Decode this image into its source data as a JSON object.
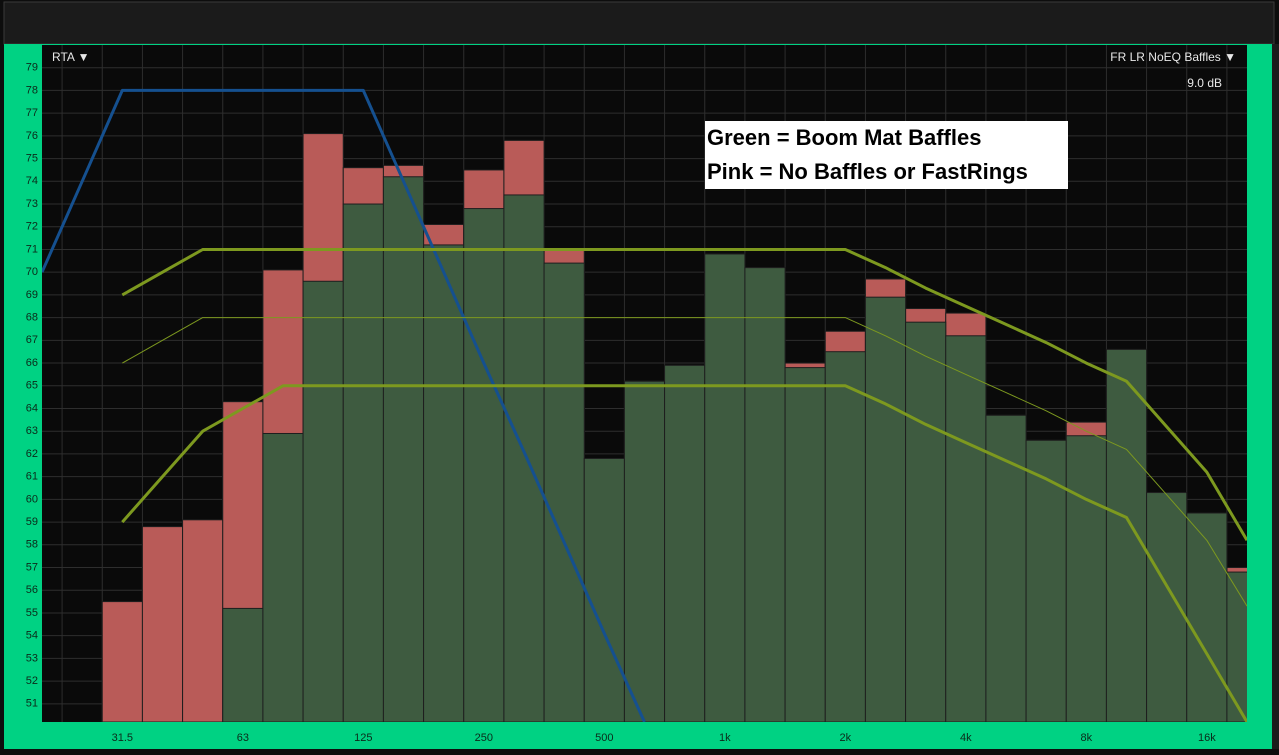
{
  "chart_data": {
    "type": "bar",
    "menu_left": "RTA ▼",
    "menu_right": "FR LR NoEQ Baffles ▼",
    "scale_label": "9.0 dB",
    "categories": [
      null,
      null,
      "31.5",
      null,
      null,
      "63",
      null,
      null,
      "125",
      null,
      null,
      "250",
      null,
      null,
      "500",
      null,
      null,
      "1k",
      null,
      null,
      "2k",
      null,
      null,
      "4k",
      null,
      null,
      "8k",
      null,
      null,
      "16k",
      null
    ],
    "ylim": [
      50.2,
      80
    ],
    "yticks": [
      51,
      52,
      53,
      54,
      55,
      56,
      57,
      58,
      59,
      60,
      61,
      62,
      63,
      64,
      65,
      66,
      67,
      68,
      69,
      70,
      71,
      72,
      73,
      74,
      75,
      76,
      77,
      78,
      79
    ],
    "grid": true,
    "series": [
      {
        "name": "Pink = No Baffles or FastRings",
        "type": "bar",
        "color": "#b95b58",
        "values": [
          null,
          null,
          55.5,
          58.8,
          59.1,
          64.3,
          70.1,
          76.1,
          74.6,
          74.7,
          72.1,
          74.5,
          75.8,
          71.0,
          61.8,
          65.2,
          65.9,
          70.8,
          70.2,
          66.0,
          67.4,
          69.7,
          68.4,
          68.2,
          63.7,
          62.6,
          63.4,
          66.6,
          60.3,
          59.4,
          57.0
        ]
      },
      {
        "name": "Green = Boom Mat Baffles",
        "type": "bar",
        "color": "#3e5b40",
        "values": [
          null,
          null,
          null,
          null,
          null,
          55.2,
          62.9,
          69.6,
          73.0,
          74.2,
          71.2,
          72.8,
          73.4,
          70.4,
          61.8,
          65.2,
          65.9,
          70.8,
          70.2,
          65.8,
          66.5,
          68.9,
          67.8,
          67.2,
          63.7,
          62.6,
          62.8,
          66.6,
          60.3,
          59.4,
          56.8
        ]
      },
      {
        "type": "line",
        "color": "#15508f",
        "width": 3,
        "values": [
          70,
          74,
          78,
          78,
          78,
          78,
          78,
          78,
          78,
          74.0,
          70.0,
          66.0,
          62.1,
          58.1,
          54.1,
          50.2,
          null,
          null,
          null,
          null,
          null,
          null,
          null,
          null,
          null,
          null,
          null,
          null,
          null,
          null,
          null
        ]
      },
      {
        "type": "line",
        "color": "#7d991f",
        "width": 3,
        "values": [
          null,
          null,
          69.0,
          70.0,
          71.0,
          71.0,
          71.0,
          71.0,
          71.0,
          71.0,
          71.0,
          71.0,
          71.0,
          71.0,
          71.0,
          71.0,
          71.0,
          71.0,
          71.0,
          71.0,
          71.0,
          70.2,
          69.3,
          68.5,
          67.7,
          66.9,
          66.0,
          65.2,
          63.2,
          61.2,
          58.2
        ]
      },
      {
        "type": "line",
        "color": "#7d991f",
        "width": 1,
        "values": [
          null,
          null,
          66.0,
          67.0,
          68.0,
          68.0,
          68.0,
          68.0,
          68.0,
          68.0,
          68.0,
          68.0,
          68.0,
          68.0,
          68.0,
          68.0,
          68.0,
          68.0,
          68.0,
          68.0,
          68.0,
          67.2,
          66.3,
          65.5,
          64.7,
          63.9,
          63.0,
          62.2,
          60.2,
          58.2,
          55.3
        ]
      },
      {
        "type": "line",
        "color": "#7d991f",
        "width": 3,
        "values": [
          null,
          null,
          59.0,
          61.0,
          63.0,
          64.0,
          65.0,
          65.0,
          65.0,
          65.0,
          65.0,
          65.0,
          65.0,
          65.0,
          65.0,
          65.0,
          65.0,
          65.0,
          65.0,
          65.0,
          65.0,
          64.2,
          63.3,
          62.5,
          61.7,
          60.9,
          60.0,
          59.2,
          56.2,
          53.2,
          50.2
        ]
      }
    ]
  }
}
